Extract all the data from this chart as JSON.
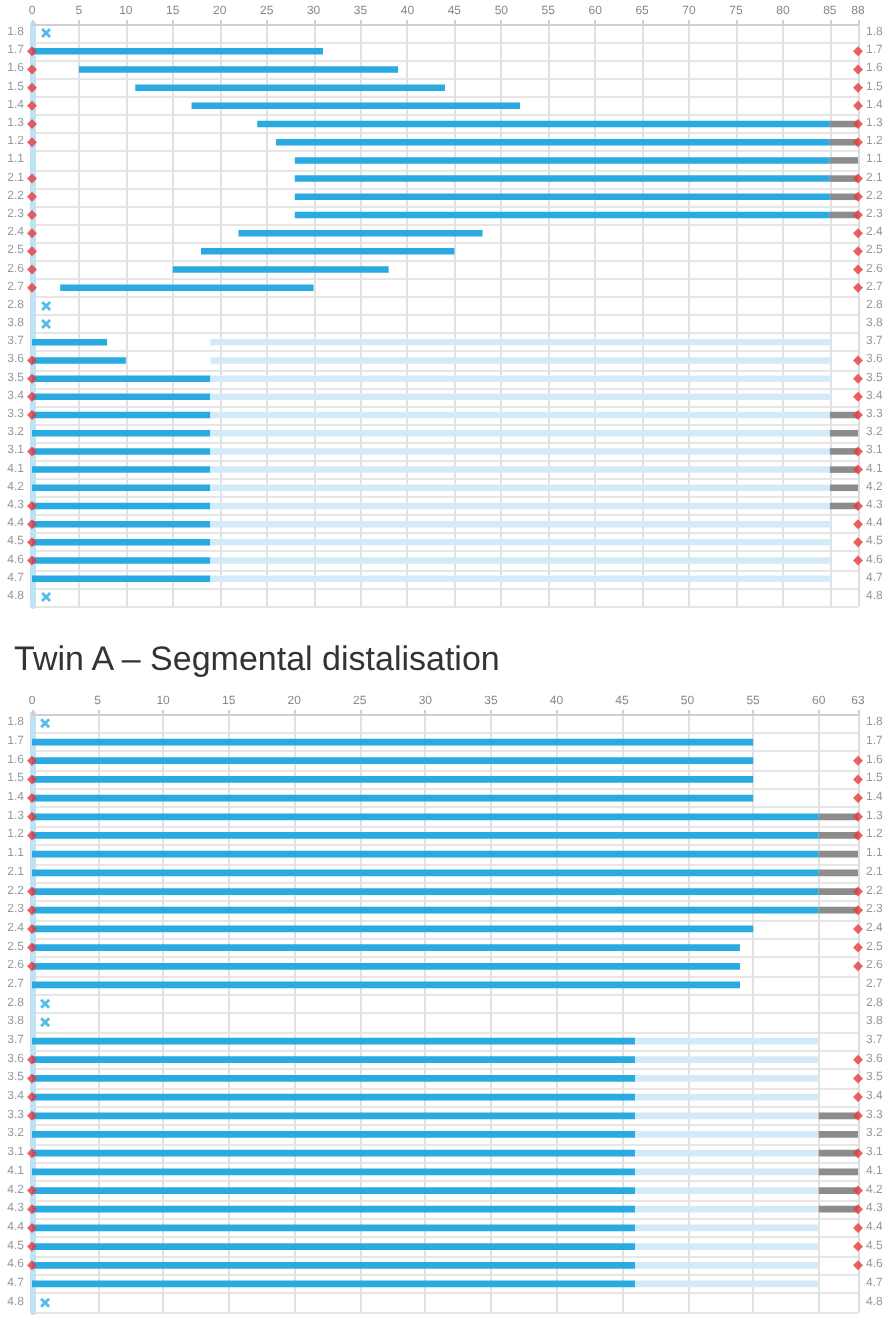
{
  "chart_data": [
    {
      "type": "bar",
      "orientation": "horizontal",
      "title": "Twin A – Segmental distalisation",
      "categories": [
        "1.8",
        "1.7",
        "1.6",
        "1.5",
        "1.4",
        "1.3",
        "1.2",
        "1.1",
        "2.1",
        "2.2",
        "2.3",
        "2.4",
        "2.5",
        "2.6",
        "2.7",
        "2.8",
        "3.8",
        "3.7",
        "3.6",
        "3.5",
        "3.4",
        "3.3",
        "3.2",
        "3.1",
        "4.1",
        "4.2",
        "4.3",
        "4.4",
        "4.5",
        "4.6",
        "4.7",
        "4.8"
      ],
      "y2_categories": [
        "1.8",
        "1.7",
        "1.6",
        "1.5",
        "1.4",
        "1.3",
        "1.2",
        "1.1",
        "2.1",
        "2.2",
        "2.3",
        "2.4",
        "2.5",
        "2.6",
        "2.7",
        "2.8",
        "3.8",
        "3.7",
        "3.6",
        "3.5",
        "3.4",
        "3.3",
        "3.2",
        "3.1",
        "4.1",
        "4.2",
        "4.3",
        "4.4",
        "4.5",
        "4.6",
        "4.7",
        "4.8"
      ],
      "xlim": [
        0,
        88
      ],
      "xticks": [
        0,
        5,
        10,
        15,
        20,
        25,
        30,
        35,
        40,
        45,
        50,
        55,
        60,
        65,
        70,
        75,
        80,
        85,
        88
      ],
      "grid": true,
      "series": [
        {
          "type": "bar",
          "color": "#29abe2",
          "base": [
            null,
            0,
            5,
            11,
            17,
            24,
            26,
            28,
            28,
            28,
            28,
            22,
            18,
            15,
            3,
            null,
            null,
            0,
            0,
            0,
            0,
            0,
            0,
            0,
            0,
            0,
            0,
            0,
            0,
            0,
            0,
            null
          ],
          "values": [
            null,
            31,
            34,
            33,
            35,
            61,
            59,
            57,
            57,
            57,
            57,
            26,
            27,
            23,
            27,
            null,
            null,
            8,
            10,
            19,
            19,
            19,
            19,
            19,
            19,
            19,
            19,
            19,
            19,
            19,
            19,
            null
          ]
        },
        {
          "type": "bar",
          "color": "#d3ebf8",
          "base": [
            null,
            null,
            null,
            null,
            null,
            null,
            null,
            null,
            null,
            null,
            null,
            null,
            null,
            null,
            null,
            null,
            null,
            19,
            19,
            19,
            19,
            19,
            19,
            19,
            19,
            19,
            19,
            19,
            19,
            19,
            19,
            null
          ],
          "values": [
            null,
            null,
            null,
            null,
            null,
            null,
            null,
            null,
            null,
            null,
            null,
            null,
            null,
            null,
            null,
            null,
            null,
            66,
            66,
            66,
            66,
            66,
            66,
            66,
            66,
            66,
            66,
            66,
            66,
            66,
            66,
            null
          ]
        },
        {
          "type": "bar",
          "color": "#8c8c8c",
          "base": [
            null,
            null,
            null,
            null,
            null,
            85,
            85,
            85,
            85,
            85,
            85,
            null,
            null,
            null,
            null,
            null,
            null,
            null,
            null,
            null,
            null,
            85,
            85,
            85,
            85,
            85,
            85,
            null,
            null,
            null,
            null,
            null
          ],
          "values": [
            null,
            null,
            null,
            null,
            null,
            3,
            3,
            3,
            3,
            3,
            3,
            null,
            null,
            null,
            null,
            null,
            null,
            null,
            null,
            null,
            null,
            3,
            3,
            3,
            3,
            3,
            3,
            null,
            null,
            null,
            null,
            null
          ]
        },
        {
          "type": "scatter",
          "marker": "cross",
          "color": "#29abe2",
          "values": [
            1.5,
            null,
            null,
            null,
            null,
            null,
            null,
            null,
            null,
            null,
            null,
            null,
            null,
            null,
            null,
            1.5,
            1.5,
            null,
            null,
            null,
            null,
            null,
            null,
            null,
            null,
            null,
            null,
            null,
            null,
            null,
            null,
            1.5
          ]
        },
        {
          "type": "scatter",
          "marker": "diamond",
          "color": "#e8383d",
          "values": [
            null,
            0,
            0,
            0,
            0,
            0,
            0,
            null,
            0,
            0,
            0,
            0,
            0,
            0,
            0,
            null,
            null,
            null,
            0,
            0,
            0,
            0,
            null,
            0,
            null,
            null,
            0,
            0,
            0,
            0,
            null,
            null
          ]
        },
        {
          "type": "scatter",
          "marker": "diamond",
          "color": "#e8383d",
          "values": [
            null,
            88,
            88,
            88,
            88,
            88,
            88,
            null,
            88,
            88,
            88,
            88,
            88,
            88,
            88,
            null,
            null,
            null,
            88,
            88,
            88,
            88,
            null,
            88,
            88,
            null,
            88,
            88,
            88,
            88,
            null,
            null
          ]
        }
      ]
    },
    {
      "type": "bar",
      "orientation": "horizontal",
      "categories": [
        "1.8",
        "1.7",
        "1.6",
        "1.5",
        "1.4",
        "1.3",
        "1.2",
        "1.1",
        "2.1",
        "2.2",
        "2.3",
        "2.4",
        "2.5",
        "2.6",
        "2.7",
        "2.8",
        "3.8",
        "3.7",
        "3.6",
        "3.5",
        "3.4",
        "3.3",
        "3.2",
        "3.1",
        "4.1",
        "4.2",
        "4.3",
        "4.4",
        "4.5",
        "4.6",
        "4.7",
        "4.8"
      ],
      "y2_categories": [
        "1.8",
        "1.7",
        "1.6",
        "1.5",
        "1.4",
        "1.3",
        "1.2",
        "1.1",
        "2.1",
        "2.2",
        "2.3",
        "2.4",
        "2.5",
        "2.6",
        "2.7",
        "2.8",
        "3.8",
        "3.7",
        "3.6",
        "3.5",
        "3.4",
        "3.3",
        "3.2",
        "3.1",
        "4.1",
        "4.2",
        "4.3",
        "4.4",
        "4.5",
        "4.6",
        "4.7",
        "4.8"
      ],
      "xlim": [
        0,
        63
      ],
      "xticks": [
        0,
        5,
        10,
        15,
        20,
        25,
        30,
        35,
        40,
        45,
        50,
        55,
        60,
        63
      ],
      "grid": true,
      "series": [
        {
          "type": "bar",
          "color": "#29abe2",
          "base": [
            null,
            0,
            0,
            0,
            0,
            0,
            0,
            0,
            0,
            0,
            0,
            0,
            0,
            0,
            0,
            null,
            null,
            0,
            0,
            0,
            0,
            0,
            0,
            0,
            0,
            0,
            0,
            0,
            0,
            0,
            0,
            null
          ],
          "values": [
            null,
            55,
            55,
            55,
            55,
            60,
            60,
            60,
            60,
            60,
            60,
            55,
            54,
            54,
            54,
            null,
            null,
            46,
            46,
            46,
            46,
            46,
            46,
            46,
            46,
            46,
            46,
            46,
            46,
            46,
            46,
            null
          ]
        },
        {
          "type": "bar",
          "color": "#d3ebf8",
          "base": [
            null,
            null,
            null,
            null,
            null,
            null,
            null,
            null,
            null,
            null,
            null,
            null,
            null,
            null,
            null,
            null,
            null,
            46,
            46,
            46,
            46,
            46,
            46,
            46,
            46,
            46,
            46,
            46,
            46,
            46,
            46,
            null
          ],
          "values": [
            null,
            null,
            null,
            null,
            null,
            null,
            null,
            null,
            null,
            null,
            null,
            null,
            null,
            null,
            null,
            null,
            null,
            14,
            14,
            14,
            14,
            14,
            14,
            14,
            14,
            14,
            14,
            14,
            14,
            14,
            14,
            null
          ]
        },
        {
          "type": "bar",
          "color": "#8c8c8c",
          "base": [
            null,
            null,
            null,
            null,
            null,
            60,
            60,
            60,
            60,
            60,
            60,
            null,
            null,
            null,
            null,
            null,
            null,
            null,
            null,
            null,
            null,
            60,
            60,
            60,
            60,
            60,
            60,
            null,
            null,
            null,
            null,
            null
          ],
          "values": [
            null,
            null,
            null,
            null,
            null,
            3,
            3,
            3,
            3,
            3,
            3,
            null,
            null,
            null,
            null,
            null,
            null,
            null,
            null,
            null,
            null,
            3,
            3,
            3,
            3,
            3,
            3,
            null,
            null,
            null,
            null,
            null
          ]
        },
        {
          "type": "scatter",
          "marker": "cross",
          "color": "#29abe2",
          "values": [
            1,
            null,
            null,
            null,
            null,
            null,
            null,
            null,
            null,
            null,
            null,
            null,
            null,
            null,
            null,
            1,
            1,
            null,
            null,
            null,
            null,
            null,
            null,
            null,
            null,
            null,
            null,
            null,
            null,
            null,
            null,
            1
          ]
        },
        {
          "type": "scatter",
          "marker": "diamond",
          "color": "#e8383d",
          "values": [
            null,
            null,
            0,
            0,
            0,
            0,
            0,
            null,
            null,
            0,
            0,
            0,
            0,
            0,
            null,
            null,
            null,
            null,
            0,
            0,
            0,
            0,
            null,
            0,
            null,
            0,
            0,
            0,
            0,
            0,
            null,
            null
          ]
        },
        {
          "type": "scatter",
          "marker": "diamond",
          "color": "#e8383d",
          "values": [
            null,
            null,
            63,
            63,
            63,
            63,
            63,
            null,
            null,
            63,
            63,
            63,
            63,
            63,
            null,
            null,
            null,
            null,
            63,
            63,
            63,
            63,
            null,
            63,
            null,
            63,
            63,
            63,
            63,
            63,
            null,
            null
          ]
        }
      ]
    }
  ]
}
